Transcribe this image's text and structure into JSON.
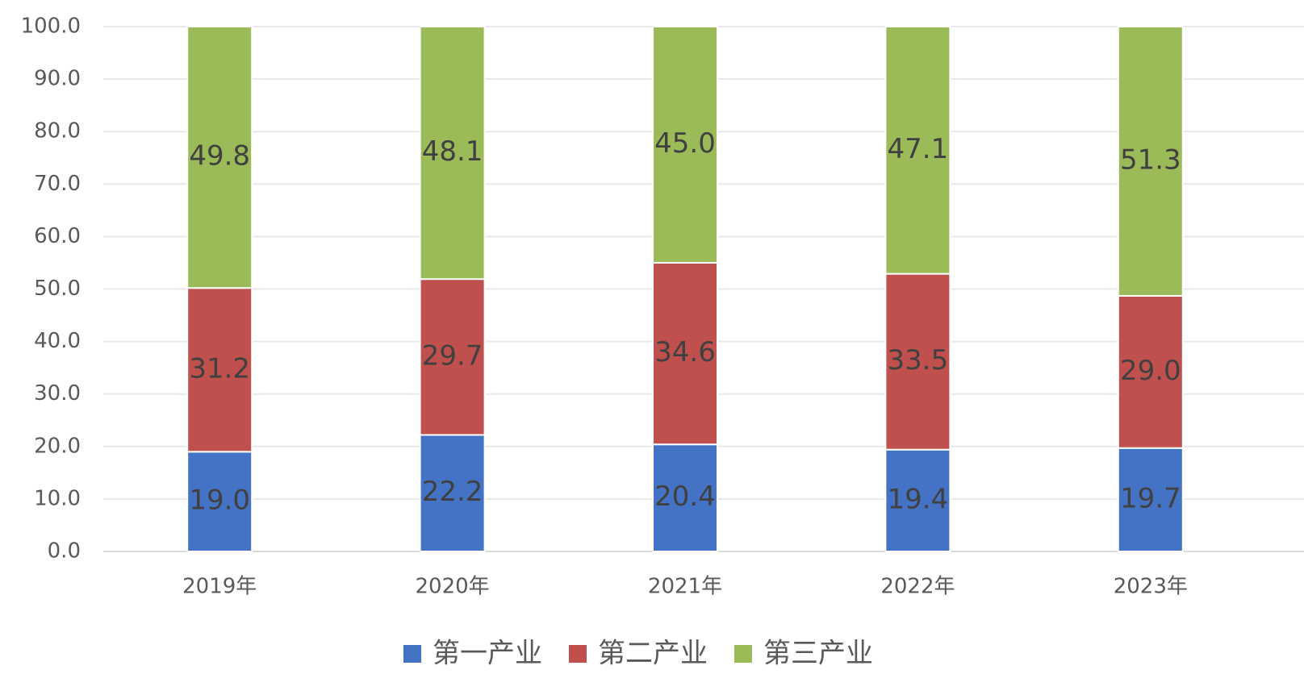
{
  "chart_data": {
    "type": "stacked_bar",
    "categories": [
      "2019年",
      "2020年",
      "2021年",
      "2022年",
      "2023年"
    ],
    "series": [
      {
        "name": "第一产业",
        "color": "#4472c4",
        "values": [
          19.0,
          22.2,
          20.4,
          19.4,
          19.7
        ],
        "value_labels": [
          "19.0",
          "22.2",
          "20.4",
          "19.4",
          "19.7"
        ]
      },
      {
        "name": "第二产业",
        "color": "#c0504d",
        "values": [
          31.2,
          29.7,
          34.6,
          33.5,
          29.0
        ],
        "value_labels": [
          "31.2",
          "29.7",
          "34.6",
          "33.5",
          "29.0"
        ]
      },
      {
        "name": "第三产业",
        "color": "#9bbb59",
        "values": [
          49.8,
          48.1,
          45.0,
          47.1,
          51.3
        ],
        "value_labels": [
          "49.8",
          "48.1",
          "45.0",
          "47.1",
          "51.3"
        ]
      }
    ],
    "ylim": [
      0,
      100
    ],
    "yticks": [
      {
        "value": 0,
        "label": "0.0"
      },
      {
        "value": 10,
        "label": "10.0"
      },
      {
        "value": 20,
        "label": "20.0"
      },
      {
        "value": 30,
        "label": "30.0"
      },
      {
        "value": 40,
        "label": "40.0"
      },
      {
        "value": 50,
        "label": "50.0"
      },
      {
        "value": 60,
        "label": "60.0"
      },
      {
        "value": 70,
        "label": "70.0"
      },
      {
        "value": 80,
        "label": "80.0"
      },
      {
        "value": 90,
        "label": "90.0"
      },
      {
        "value": 100,
        "label": "100.0"
      }
    ],
    "grid": true,
    "legend": "bottom"
  }
}
